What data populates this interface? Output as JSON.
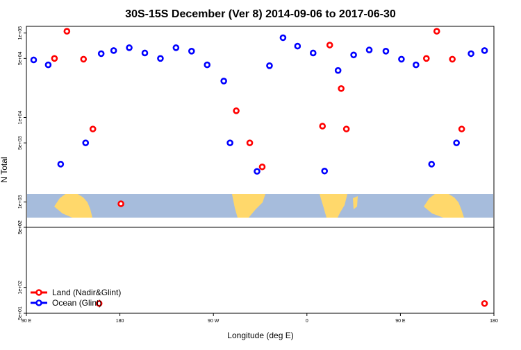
{
  "chart_data": {
    "type": "scatter",
    "title": "30S-15S December (Ver 8)   2014-09-06 to 2017-06-30",
    "xlabel": "Longitude (deg E)",
    "ylabel": "N Total",
    "x_ticks": [
      {
        "value": 90,
        "label": "90 E"
      },
      {
        "value": 180,
        "label": "180"
      },
      {
        "value": 270,
        "label": "90 W"
      },
      {
        "value": 360,
        "label": "0"
      },
      {
        "value": 450,
        "label": "90 E"
      },
      {
        "value": 540,
        "label": "180"
      }
    ],
    "xlim": [
      90,
      540
    ],
    "upper_panel": {
      "y_scale": "log",
      "ylim": [
        500,
        120000
      ],
      "y_ticks": [
        {
          "value": 100000,
          "label": "1e+05"
        },
        {
          "value": 50000,
          "label": "5e+04"
        },
        {
          "value": 10000,
          "label": "1e+04"
        },
        {
          "value": 5000,
          "label": "5e+03"
        },
        {
          "value": 1000,
          "label": "1e+03"
        },
        {
          "value": 500,
          "label": "5e+02"
        }
      ]
    },
    "lower_panel": {
      "y_scale": "log",
      "ylim": [
        50,
        500
      ],
      "y_ticks": [
        {
          "value": 500,
          "label": "5e+02"
        },
        {
          "value": 100,
          "label": "1e+02"
        },
        {
          "value": 50,
          "label": "5e+01"
        }
      ]
    },
    "legend": {
      "position": "bottom-left",
      "entries": [
        {
          "name": "Land (Nadir&Glint)",
          "color": "#ff0000"
        },
        {
          "name": "Ocean (Glint)",
          "color": "#0000ff"
        }
      ]
    },
    "series": [
      {
        "name": "Land (Nadir&Glint)",
        "color": "#ff0000",
        "points": [
          {
            "x": 117,
            "y": 50000
          },
          {
            "x": 129,
            "y": 105000
          },
          {
            "x": 145,
            "y": 49000
          },
          {
            "x": 154,
            "y": 7300
          },
          {
            "x": 181,
            "y": 950
          },
          {
            "x": 292,
            "y": 12000
          },
          {
            "x": 305,
            "y": 5000
          },
          {
            "x": 317,
            "y": 2600
          },
          {
            "x": 375,
            "y": 7900
          },
          {
            "x": 382,
            "y": 72000
          },
          {
            "x": 393,
            "y": 22000
          },
          {
            "x": 398,
            "y": 7300
          },
          {
            "x": 475,
            "y": 50000
          },
          {
            "x": 485,
            "y": 105000
          },
          {
            "x": 500,
            "y": 49000
          },
          {
            "x": 509,
            "y": 7300
          },
          {
            "x": 160,
            "y": 65
          },
          {
            "x": 531,
            "y": 65
          }
        ]
      },
      {
        "name": "Ocean (Glint)",
        "color": "#0000ff",
        "points": [
          {
            "x": 97,
            "y": 48000
          },
          {
            "x": 111,
            "y": 42000
          },
          {
            "x": 123,
            "y": 2800
          },
          {
            "x": 147,
            "y": 5000
          },
          {
            "x": 162,
            "y": 57000
          },
          {
            "x": 174,
            "y": 62000
          },
          {
            "x": 189,
            "y": 67000
          },
          {
            "x": 204,
            "y": 58000
          },
          {
            "x": 219,
            "y": 50000
          },
          {
            "x": 234,
            "y": 67000
          },
          {
            "x": 249,
            "y": 61000
          },
          {
            "x": 264,
            "y": 42000
          },
          {
            "x": 280,
            "y": 27000
          },
          {
            "x": 286,
            "y": 5000
          },
          {
            "x": 312,
            "y": 2300
          },
          {
            "x": 324,
            "y": 41000
          },
          {
            "x": 337,
            "y": 88000
          },
          {
            "x": 351,
            "y": 70000
          },
          {
            "x": 366,
            "y": 58000
          },
          {
            "x": 377,
            "y": 2320
          },
          {
            "x": 390,
            "y": 36000
          },
          {
            "x": 405,
            "y": 55000
          },
          {
            "x": 420,
            "y": 63000
          },
          {
            "x": 436,
            "y": 61000
          },
          {
            "x": 451,
            "y": 49000
          },
          {
            "x": 465,
            "y": 42000
          },
          {
            "x": 480,
            "y": 2800
          },
          {
            "x": 504,
            "y": 5000
          },
          {
            "x": 518,
            "y": 57000
          },
          {
            "x": 531,
            "y": 62000
          }
        ]
      }
    ]
  }
}
